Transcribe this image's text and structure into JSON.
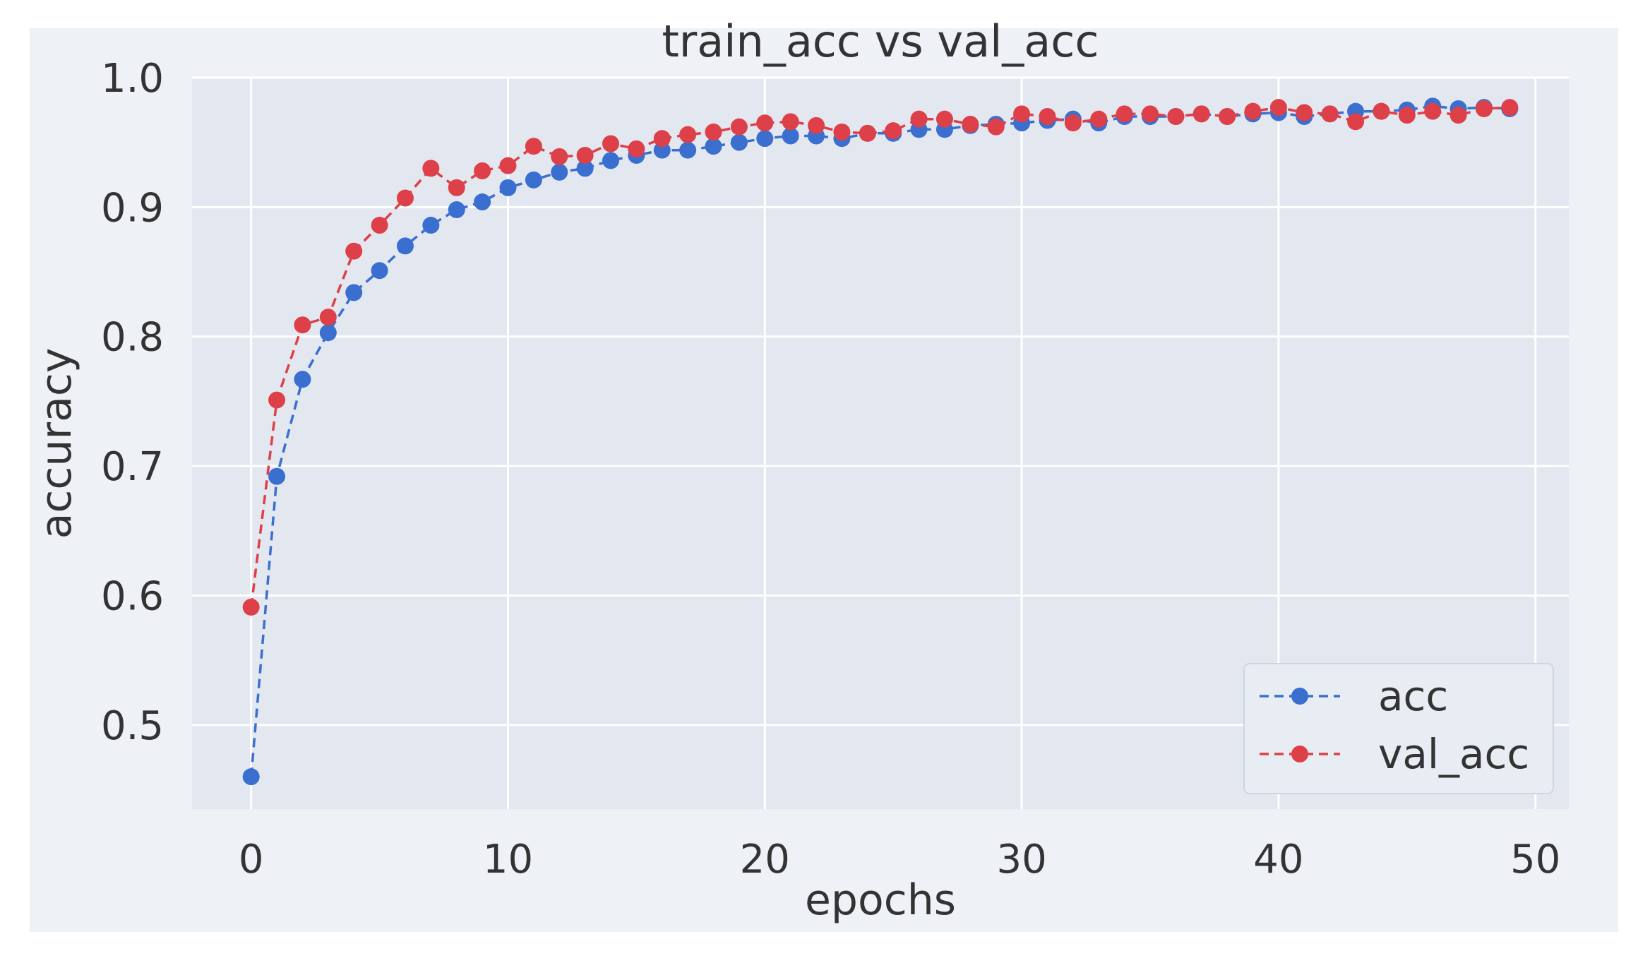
{
  "chart_data": {
    "type": "line",
    "title": "train_acc vs val_acc",
    "xlabel": "epochs",
    "ylabel": "accuracy",
    "xlim": [
      -2.3,
      51.3
    ],
    "ylim": [
      0.435,
      1.0
    ],
    "xticks": [
      0,
      10,
      20,
      30,
      40,
      50
    ],
    "yticks": [
      0.5,
      0.6,
      0.7,
      0.8,
      0.9,
      1.0
    ],
    "xtick_labels": [
      "0",
      "10",
      "20",
      "30",
      "40",
      "50"
    ],
    "ytick_labels": [
      "0.5",
      "0.6",
      "0.7",
      "0.8",
      "0.9",
      "1.0"
    ],
    "grid": true,
    "legend_position": "bottom-right",
    "x": [
      0,
      1,
      2,
      3,
      4,
      5,
      6,
      7,
      8,
      9,
      10,
      11,
      12,
      13,
      14,
      15,
      16,
      17,
      18,
      19,
      20,
      21,
      22,
      23,
      24,
      25,
      26,
      27,
      28,
      29,
      30,
      31,
      32,
      33,
      34,
      35,
      36,
      37,
      38,
      39,
      40,
      41,
      42,
      43,
      44,
      45,
      46,
      47,
      48,
      49
    ],
    "series": [
      {
        "name": "acc",
        "color": "#3a6fcf",
        "style": "dashed",
        "marker": "circle",
        "values": [
          0.46,
          0.692,
          0.767,
          0.803,
          0.834,
          0.851,
          0.87,
          0.886,
          0.898,
          0.904,
          0.915,
          0.921,
          0.927,
          0.93,
          0.936,
          0.94,
          0.944,
          0.944,
          0.947,
          0.95,
          0.953,
          0.955,
          0.955,
          0.953,
          0.957,
          0.957,
          0.96,
          0.96,
          0.963,
          0.964,
          0.965,
          0.967,
          0.968,
          0.965,
          0.97,
          0.97,
          0.97,
          0.972,
          0.97,
          0.972,
          0.973,
          0.97,
          0.972,
          0.974,
          0.974,
          0.975,
          0.978,
          0.976,
          0.977,
          0.976
        ]
      },
      {
        "name": "val_acc",
        "color": "#dd4048",
        "style": "dashed",
        "marker": "circle",
        "values": [
          0.591,
          0.751,
          0.809,
          0.815,
          0.866,
          0.886,
          0.907,
          0.93,
          0.915,
          0.928,
          0.932,
          0.947,
          0.939,
          0.94,
          0.949,
          0.945,
          0.953,
          0.956,
          0.958,
          0.962,
          0.965,
          0.966,
          0.963,
          0.958,
          0.957,
          0.959,
          0.968,
          0.968,
          0.964,
          0.962,
          0.972,
          0.97,
          0.965,
          0.968,
          0.972,
          0.972,
          0.97,
          0.972,
          0.97,
          0.974,
          0.977,
          0.973,
          0.972,
          0.966,
          0.974,
          0.971,
          0.974,
          0.971,
          0.976,
          0.977
        ]
      }
    ]
  }
}
